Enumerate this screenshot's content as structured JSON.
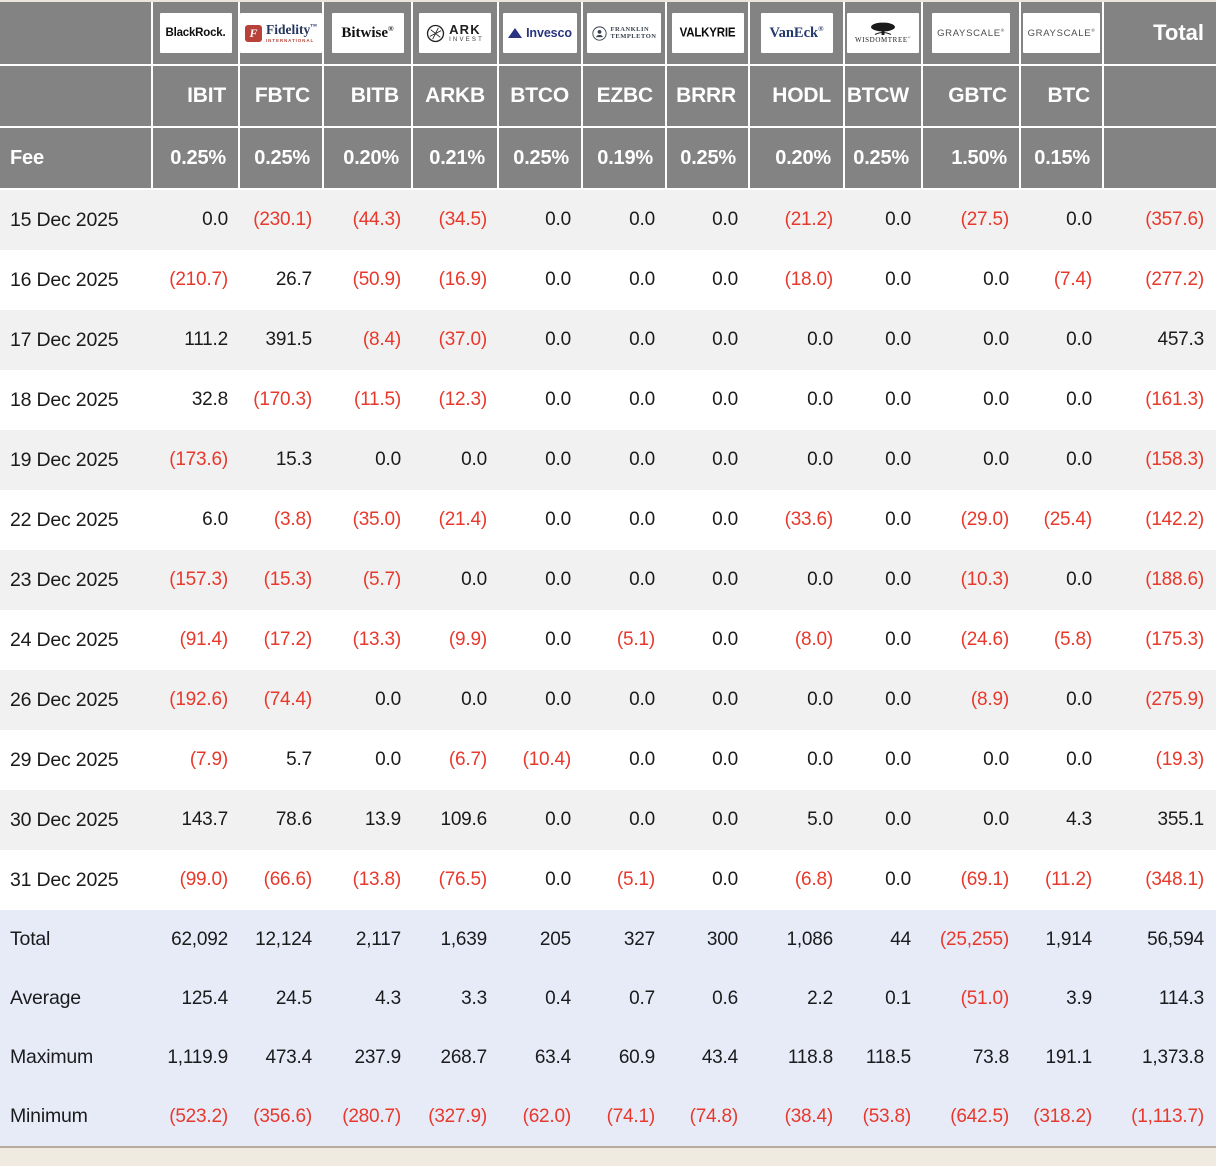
{
  "colors": {
    "header_bg": "#838383",
    "negative": "#e8382c",
    "row_stripe": "#f1f1f1",
    "summary_bg": "#e7ebf8",
    "page_bg": "#f0ebe1",
    "header_text": "#ffffff"
  },
  "logos": {
    "blackrock": "BlackRock.",
    "fidelity_f": "F",
    "fidelity": "Fidelity",
    "fidelity_sub": "INTERNATIONAL",
    "bitwise": "Bitwise",
    "ark": "ARK",
    "ark_sub": "INVEST",
    "invesco": "Invesco",
    "franklin1": "FRANKLIN",
    "franklin2": "TEMPLETON",
    "valkyrie": "VALKYRIE",
    "vaneck": "VanEck",
    "wisdomtree": "WISDOMTREE",
    "grayscale": "GRAYSCALE"
  },
  "table": {
    "total_header": "Total",
    "fee_label": "Fee",
    "columns": [
      {
        "provider": "BlackRock",
        "logo": "blackrock",
        "ticker": "IBIT",
        "fee": "0.25%"
      },
      {
        "provider": "Fidelity",
        "logo": "fidelity",
        "ticker": "FBTC",
        "fee": "0.25%"
      },
      {
        "provider": "Bitwise",
        "logo": "bitwise",
        "ticker": "BITB",
        "fee": "0.20%"
      },
      {
        "provider": "ARK Invest",
        "logo": "ark",
        "ticker": "ARKB",
        "fee": "0.21%"
      },
      {
        "provider": "Invesco",
        "logo": "invesco",
        "ticker": "BTCO",
        "fee": "0.25%"
      },
      {
        "provider": "Franklin Templeton",
        "logo": "franklin",
        "ticker": "EZBC",
        "fee": "0.19%"
      },
      {
        "provider": "Valkyrie",
        "logo": "valkyrie",
        "ticker": "BRRR",
        "fee": "0.25%"
      },
      {
        "provider": "VanEck",
        "logo": "vaneck",
        "ticker": "HODL",
        "fee": "0.20%"
      },
      {
        "provider": "WisdomTree",
        "logo": "wisdomtree",
        "ticker": "BTCW",
        "fee": "0.25%"
      },
      {
        "provider": "Grayscale",
        "logo": "grayscale",
        "ticker": "GBTC",
        "fee": "1.50%"
      },
      {
        "provider": "Grayscale",
        "logo": "grayscale",
        "ticker": "BTC",
        "fee": "0.15%"
      }
    ],
    "rows": [
      {
        "date": "15 Dec 2025",
        "values": [
          "0.0",
          "(230.1)",
          "(44.3)",
          "(34.5)",
          "0.0",
          "0.0",
          "0.0",
          "(21.2)",
          "0.0",
          "(27.5)",
          "0.0"
        ],
        "total": "(357.6)"
      },
      {
        "date": "16 Dec 2025",
        "values": [
          "(210.7)",
          "26.7",
          "(50.9)",
          "(16.9)",
          "0.0",
          "0.0",
          "0.0",
          "(18.0)",
          "0.0",
          "0.0",
          "(7.4)"
        ],
        "total": "(277.2)"
      },
      {
        "date": "17 Dec 2025",
        "values": [
          "111.2",
          "391.5",
          "(8.4)",
          "(37.0)",
          "0.0",
          "0.0",
          "0.0",
          "0.0",
          "0.0",
          "0.0",
          "0.0"
        ],
        "total": "457.3"
      },
      {
        "date": "18 Dec 2025",
        "values": [
          "32.8",
          "(170.3)",
          "(11.5)",
          "(12.3)",
          "0.0",
          "0.0",
          "0.0",
          "0.0",
          "0.0",
          "0.0",
          "0.0"
        ],
        "total": "(161.3)"
      },
      {
        "date": "19 Dec 2025",
        "values": [
          "(173.6)",
          "15.3",
          "0.0",
          "0.0",
          "0.0",
          "0.0",
          "0.0",
          "0.0",
          "0.0",
          "0.0",
          "0.0"
        ],
        "total": "(158.3)"
      },
      {
        "date": "22 Dec 2025",
        "values": [
          "6.0",
          "(3.8)",
          "(35.0)",
          "(21.4)",
          "0.0",
          "0.0",
          "0.0",
          "(33.6)",
          "0.0",
          "(29.0)",
          "(25.4)"
        ],
        "total": "(142.2)"
      },
      {
        "date": "23 Dec 2025",
        "values": [
          "(157.3)",
          "(15.3)",
          "(5.7)",
          "0.0",
          "0.0",
          "0.0",
          "0.0",
          "0.0",
          "0.0",
          "(10.3)",
          "0.0"
        ],
        "total": "(188.6)"
      },
      {
        "date": "24 Dec 2025",
        "values": [
          "(91.4)",
          "(17.2)",
          "(13.3)",
          "(9.9)",
          "0.0",
          "(5.1)",
          "0.0",
          "(8.0)",
          "0.0",
          "(24.6)",
          "(5.8)"
        ],
        "total": "(175.3)"
      },
      {
        "date": "26 Dec 2025",
        "values": [
          "(192.6)",
          "(74.4)",
          "0.0",
          "0.0",
          "0.0",
          "0.0",
          "0.0",
          "0.0",
          "0.0",
          "(8.9)",
          "0.0"
        ],
        "total": "(275.9)"
      },
      {
        "date": "29 Dec 2025",
        "values": [
          "(7.9)",
          "5.7",
          "0.0",
          "(6.7)",
          "(10.4)",
          "0.0",
          "0.0",
          "0.0",
          "0.0",
          "0.0",
          "0.0"
        ],
        "total": "(19.3)"
      },
      {
        "date": "30 Dec 2025",
        "values": [
          "143.7",
          "78.6",
          "13.9",
          "109.6",
          "0.0",
          "0.0",
          "0.0",
          "5.0",
          "0.0",
          "0.0",
          "4.3"
        ],
        "total": "355.1"
      },
      {
        "date": "31 Dec 2025",
        "values": [
          "(99.0)",
          "(66.6)",
          "(13.8)",
          "(76.5)",
          "0.0",
          "(5.1)",
          "0.0",
          "(6.8)",
          "0.0",
          "(69.1)",
          "(11.2)"
        ],
        "total": "(348.1)"
      }
    ],
    "summary": [
      {
        "label": "Total",
        "values": [
          "62,092",
          "12,124",
          "2,117",
          "1,639",
          "205",
          "327",
          "300",
          "1,086",
          "44",
          "(25,255)",
          "1,914"
        ],
        "total": "56,594"
      },
      {
        "label": "Average",
        "values": [
          "125.4",
          "24.5",
          "4.3",
          "3.3",
          "0.4",
          "0.7",
          "0.6",
          "2.2",
          "0.1",
          "(51.0)",
          "3.9"
        ],
        "total": "114.3"
      },
      {
        "label": "Maximum",
        "values": [
          "1,119.9",
          "473.4",
          "237.9",
          "268.7",
          "63.4",
          "60.9",
          "43.4",
          "118.8",
          "118.5",
          "73.8",
          "191.1"
        ],
        "total": "1,373.8"
      },
      {
        "label": "Minimum",
        "values": [
          "(523.2)",
          "(356.6)",
          "(280.7)",
          "(327.9)",
          "(62.0)",
          "(74.1)",
          "(74.8)",
          "(38.4)",
          "(53.8)",
          "(642.5)",
          "(318.2)"
        ],
        "total": "(1,113.7)"
      }
    ]
  }
}
